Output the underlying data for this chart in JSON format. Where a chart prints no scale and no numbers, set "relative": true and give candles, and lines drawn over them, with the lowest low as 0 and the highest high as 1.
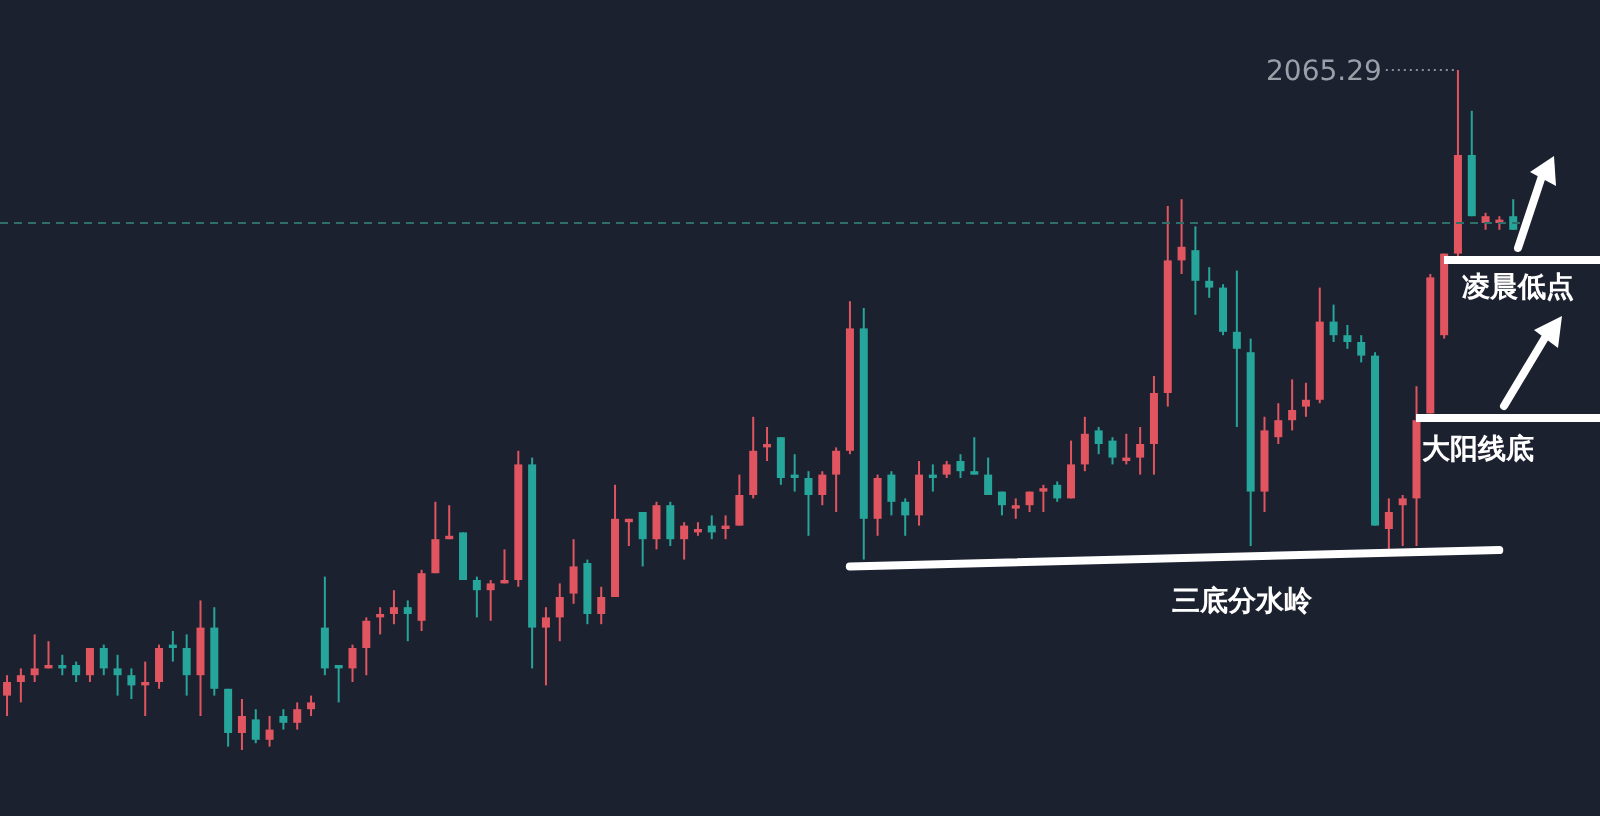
{
  "chart_data": {
    "type": "candlestick",
    "relative": true,
    "categories": [
      null,
      null,
      null,
      null,
      null,
      null,
      null,
      null,
      null,
      null,
      null,
      null,
      null,
      null,
      null,
      null,
      null,
      null,
      null,
      null,
      null,
      null,
      null,
      null,
      null,
      null,
      null,
      null,
      null,
      null,
      null,
      null,
      null,
      null,
      null,
      null,
      null,
      null,
      null,
      null,
      null,
      null,
      null,
      null,
      null,
      null,
      null,
      null,
      null,
      null,
      null,
      null,
      null,
      null,
      null,
      null,
      null,
      null,
      null,
      null,
      null,
      null,
      null,
      null,
      null,
      null,
      null,
      null,
      null,
      null,
      null,
      null,
      null,
      null,
      null,
      null,
      null,
      null,
      null,
      null,
      null,
      null,
      null,
      null,
      null,
      null,
      null,
      null,
      null,
      null,
      null,
      null,
      null,
      null,
      null,
      null,
      null,
      null,
      null,
      null,
      null,
      null,
      null,
      null,
      null,
      null,
      null,
      null,
      null,
      null
    ],
    "ohlc": [
      [
        0.08,
        0.11,
        0.05,
        0.1
      ],
      [
        0.1,
        0.12,
        0.07,
        0.11
      ],
      [
        0.11,
        0.17,
        0.1,
        0.12
      ],
      [
        0.12,
        0.16,
        0.12,
        0.125
      ],
      [
        0.125,
        0.14,
        0.11,
        0.12
      ],
      [
        0.125,
        0.13,
        0.1,
        0.11
      ],
      [
        0.11,
        0.15,
        0.1,
        0.15
      ],
      [
        0.15,
        0.155,
        0.11,
        0.12
      ],
      [
        0.12,
        0.14,
        0.08,
        0.11
      ],
      [
        0.11,
        0.12,
        0.075,
        0.095
      ],
      [
        0.095,
        0.13,
        0.05,
        0.1
      ],
      [
        0.1,
        0.155,
        0.09,
        0.15
      ],
      [
        0.155,
        0.175,
        0.13,
        0.15
      ],
      [
        0.15,
        0.17,
        0.08,
        0.11
      ],
      [
        0.11,
        0.22,
        0.05,
        0.18
      ],
      [
        0.18,
        0.21,
        0.08,
        0.09
      ],
      [
        0.09,
        0.09,
        0.005,
        0.025
      ],
      [
        0.025,
        0.075,
        0,
        0.05
      ],
      [
        0.045,
        0.06,
        0.01,
        0.015
      ],
      [
        0.015,
        0.05,
        0.005,
        0.03
      ],
      [
        0.05,
        0.06,
        0.03,
        0.04
      ],
      [
        0.04,
        0.07,
        0.03,
        0.06
      ],
      [
        0.06,
        0.08,
        0.05,
        0.07
      ],
      [
        0.18,
        0.255,
        0.11,
        0.12
      ],
      [
        0.125,
        0.125,
        0.07,
        0.12
      ],
      [
        0.12,
        0.155,
        0.1,
        0.15
      ],
      [
        0.15,
        0.195,
        0.11,
        0.19
      ],
      [
        0.195,
        0.21,
        0.17,
        0.2
      ],
      [
        0.2,
        0.235,
        0.185,
        0.21
      ],
      [
        0.21,
        0.22,
        0.16,
        0.2
      ],
      [
        0.19,
        0.265,
        0.175,
        0.26
      ],
      [
        0.26,
        0.365,
        0.26,
        0.31
      ],
      [
        0.31,
        0.36,
        0.31,
        0.315
      ],
      [
        0.32,
        0.32,
        0.25,
        0.25
      ],
      [
        0.25,
        0.255,
        0.195,
        0.235
      ],
      [
        0.235,
        0.25,
        0.19,
        0.245
      ],
      [
        0.245,
        0.295,
        0.245,
        0.25
      ],
      [
        0.25,
        0.44,
        0.24,
        0.42
      ],
      [
        0.42,
        0.43,
        0.12,
        0.18
      ],
      [
        0.18,
        0.21,
        0.095,
        0.195
      ],
      [
        0.195,
        0.245,
        0.16,
        0.225
      ],
      [
        0.23,
        0.31,
        0.215,
        0.27
      ],
      [
        0.275,
        0.28,
        0.185,
        0.2
      ],
      [
        0.2,
        0.24,
        0.185,
        0.225
      ],
      [
        0.225,
        0.39,
        0.225,
        0.34
      ],
      [
        0.335,
        0.34,
        0.3,
        0.34
      ],
      [
        0.35,
        0.35,
        0.27,
        0.31
      ],
      [
        0.31,
        0.365,
        0.295,
        0.36
      ],
      [
        0.36,
        0.365,
        0.3,
        0.31
      ],
      [
        0.31,
        0.335,
        0.28,
        0.33
      ],
      [
        0.32,
        0.335,
        0.315,
        0.325
      ],
      [
        0.33,
        0.345,
        0.31,
        0.32
      ],
      [
        0.325,
        0.345,
        0.31,
        0.33
      ],
      [
        0.33,
        0.405,
        0.33,
        0.375
      ],
      [
        0.375,
        0.49,
        0.37,
        0.44
      ],
      [
        0.445,
        0.475,
        0.425,
        0.45
      ],
      [
        0.46,
        0.46,
        0.39,
        0.4
      ],
      [
        0.405,
        0.435,
        0.38,
        0.4
      ],
      [
        0.4,
        0.41,
        0.315,
        0.375
      ],
      [
        0.375,
        0.41,
        0.36,
        0.405
      ],
      [
        0.405,
        0.445,
        0.35,
        0.44
      ],
      [
        0.44,
        0.66,
        0.435,
        0.62
      ],
      [
        0.62,
        0.65,
        0.28,
        0.34
      ],
      [
        0.34,
        0.405,
        0.315,
        0.4
      ],
      [
        0.405,
        0.41,
        0.345,
        0.365
      ],
      [
        0.365,
        0.37,
        0.315,
        0.345
      ],
      [
        0.345,
        0.425,
        0.33,
        0.405
      ],
      [
        0.405,
        0.42,
        0.38,
        0.4
      ],
      [
        0.405,
        0.425,
        0.4,
        0.42
      ],
      [
        0.425,
        0.435,
        0.4,
        0.41
      ],
      [
        0.41,
        0.46,
        0.405,
        0.405
      ],
      [
        0.405,
        0.43,
        0.375,
        0.375
      ],
      [
        0.38,
        0.38,
        0.345,
        0.36
      ],
      [
        0.355,
        0.37,
        0.34,
        0.36
      ],
      [
        0.36,
        0.38,
        0.35,
        0.38
      ],
      [
        0.38,
        0.39,
        0.35,
        0.385
      ],
      [
        0.39,
        0.395,
        0.365,
        0.37
      ],
      [
        0.37,
        0.455,
        0.37,
        0.42
      ],
      [
        0.42,
        0.49,
        0.41,
        0.465
      ],
      [
        0.47,
        0.475,
        0.435,
        0.45
      ],
      [
        0.455,
        0.46,
        0.42,
        0.43
      ],
      [
        0.425,
        0.465,
        0.42,
        0.43
      ],
      [
        0.43,
        0.475,
        0.405,
        0.45
      ],
      [
        0.45,
        0.55,
        0.405,
        0.525
      ],
      [
        0.525,
        0.8,
        0.505,
        0.72
      ],
      [
        0.72,
        0.81,
        0.7,
        0.74
      ],
      [
        0.735,
        0.77,
        0.64,
        0.69
      ],
      [
        0.69,
        0.71,
        0.665,
        0.68
      ],
      [
        0.68,
        0.685,
        0.61,
        0.615
      ],
      [
        0.615,
        0.705,
        0.475,
        0.59
      ],
      [
        0.585,
        0.605,
        0.3,
        0.38
      ],
      [
        0.38,
        0.49,
        0.35,
        0.47
      ],
      [
        0.46,
        0.51,
        0.45,
        0.485
      ],
      [
        0.485,
        0.545,
        0.47,
        0.5
      ],
      [
        0.505,
        0.54,
        0.49,
        0.515
      ],
      [
        0.515,
        0.68,
        0.51,
        0.63
      ],
      [
        0.63,
        0.655,
        0.6,
        0.61
      ],
      [
        0.61,
        0.625,
        0.59,
        0.6
      ],
      [
        0.6,
        0.61,
        0.57,
        0.58
      ],
      [
        0.58,
        0.585,
        0.33,
        0.33
      ],
      [
        0.325,
        0.37,
        0.295,
        0.35
      ],
      [
        0.36,
        0.375,
        0.3,
        0.37
      ],
      [
        0.37,
        0.535,
        0.3,
        0.485
      ],
      [
        0.495,
        0.7,
        0.495,
        0.695
      ],
      [
        0.61,
        0.73,
        0.605,
        0.73
      ],
      [
        0.73,
        1.0,
        0.72,
        0.875
      ],
      [
        0.875,
        0.94,
        0.785,
        0.785
      ],
      [
        0.775,
        0.79,
        0.765,
        0.785
      ],
      [
        0.775,
        0.785,
        0.765,
        0.78
      ],
      [
        0.785,
        0.81,
        0.765,
        0.765
      ]
    ],
    "colors": [
      "#e05560",
      "#e05560",
      "#e05560",
      "#e05560",
      "#26a69a",
      "#26a69a",
      "#e05560",
      "#26a69a",
      "#26a69a",
      "#26a69a",
      "#e05560",
      "#e05560",
      "#26a69a",
      "#26a69a",
      "#e05560",
      "#26a69a",
      "#26a69a",
      "#e05560",
      "#26a69a",
      "#e05560",
      "#26a69a",
      "#e05560",
      "#e05560",
      "#26a69a",
      "#26a69a",
      "#e05560",
      "#e05560",
      "#e05560",
      "#e05560",
      "#26a69a",
      "#e05560",
      "#e05560",
      "#e05560",
      "#26a69a",
      "#26a69a",
      "#e05560",
      "#e05560",
      "#e05560",
      "#26a69a",
      "#e05560",
      "#e05560",
      "#e05560",
      "#26a69a",
      "#e05560",
      "#e05560",
      "#e05560",
      "#26a69a",
      "#e05560",
      "#26a69a",
      "#e05560",
      "#e05560",
      "#26a69a",
      "#e05560",
      "#e05560",
      "#e05560",
      "#e05560",
      "#26a69a",
      "#26a69a",
      "#26a69a",
      "#e05560",
      "#e05560",
      "#e05560",
      "#26a69a",
      "#e05560",
      "#26a69a",
      "#26a69a",
      "#e05560",
      "#26a69a",
      "#e05560",
      "#26a69a",
      "#26a69a",
      "#26a69a",
      "#26a69a",
      "#e05560",
      "#e05560",
      "#e05560",
      "#26a69a",
      "#e05560",
      "#e05560",
      "#26a69a",
      "#26a69a",
      "#e05560",
      "#e05560",
      "#e05560",
      "#e05560",
      "#e05560",
      "#26a69a",
      "#26a69a",
      "#26a69a",
      "#26a69a",
      "#26a69a",
      "#e05560",
      "#e05560",
      "#e05560",
      "#e05560",
      "#e05560",
      "#26a69a",
      "#26a69a",
      "#26a69a",
      "#26a69a",
      "#e05560",
      "#e05560",
      "#e05560",
      "#e05560",
      "#e05560",
      "#e05560",
      "#26a69a",
      "#e05560",
      "#e05560",
      "#26a69a"
    ],
    "ref_lines": [
      {
        "axis": "y",
        "value": 0.775,
        "color": "#2f6e6a",
        "line_style": "dashed"
      }
    ],
    "series": [
      {
        "type": "line",
        "color": "#ffffff",
        "values": [
          null,
          null,
          null,
          null,
          null,
          null,
          null,
          null,
          null,
          null,
          null,
          null,
          null,
          null,
          null,
          null,
          null,
          null,
          null,
          null,
          null,
          null,
          null,
          null,
          null,
          null,
          null,
          null,
          null,
          null,
          null,
          null,
          null,
          null,
          null,
          null,
          null,
          null,
          null,
          null,
          null,
          null,
          null,
          null,
          null,
          null,
          null,
          null,
          null,
          null,
          null,
          null,
          null,
          null,
          null,
          null,
          null,
          null,
          null,
          null,
          null,
          0.27,
          null,
          null,
          null,
          null,
          null,
          null,
          null,
          null,
          null,
          null,
          null,
          null,
          null,
          null,
          null,
          null,
          null,
          null,
          null,
          null,
          null,
          null,
          null,
          null,
          null,
          null,
          null,
          null,
          null,
          null,
          null,
          null,
          null,
          null,
          null,
          null,
          null,
          null,
          null,
          null,
          null,
          null,
          null,
          null,
          null,
          null,
          0.294,
          null
        ]
      }
    ],
    "annotations": [
      "2065.29",
      "凌晨低点",
      "大阳线底",
      "三底分水岭"
    ]
  }
}
